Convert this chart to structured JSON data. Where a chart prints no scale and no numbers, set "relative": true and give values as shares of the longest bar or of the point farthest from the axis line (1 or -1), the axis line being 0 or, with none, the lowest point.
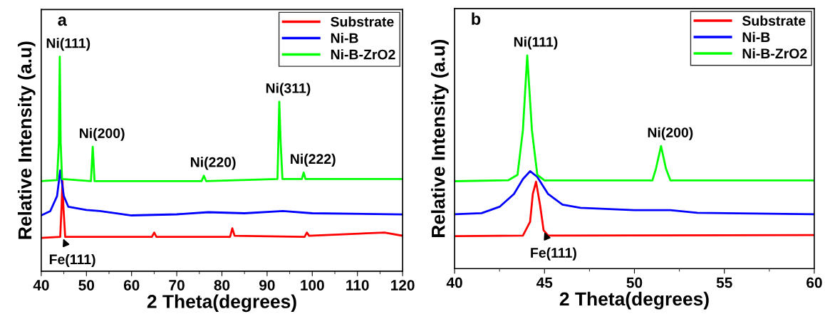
{
  "chart_data": [
    {
      "type": "line",
      "title": "a",
      "xlabel": "2 Theta(degrees)",
      "ylabel": "Relative Intensity (a.u)",
      "relative": true,
      "xlim": [
        40,
        120
      ],
      "xticks": [
        40,
        50,
        60,
        70,
        80,
        90,
        100,
        110,
        120
      ],
      "legend": "top right",
      "grid": false,
      "series": [
        {
          "name": "Substrate",
          "color": "#ff0000",
          "x": [
            40,
            44.2,
            44.5,
            44.7,
            44.9,
            45.3,
            64.5,
            65,
            65.5,
            81.8,
            82.3,
            82.8,
            98.3,
            98.8,
            99.3,
            116,
            120
          ],
          "values": [
            0.155,
            0.16,
            0.3,
            0.42,
            0.3,
            0.16,
            0.16,
            0.18,
            0.16,
            0.16,
            0.2,
            0.165,
            0.16,
            0.18,
            0.165,
            0.18,
            0.165
          ]
        },
        {
          "name": "Ni-B",
          "color": "#0000ff",
          "x": [
            40,
            42,
            43.5,
            44.2,
            45,
            46,
            50,
            53,
            60,
            70,
            77,
            85,
            93.5,
            100,
            120
          ],
          "values": [
            0.26,
            0.28,
            0.35,
            0.47,
            0.35,
            0.3,
            0.285,
            0.28,
            0.26,
            0.265,
            0.275,
            0.27,
            0.28,
            0.27,
            0.265
          ]
        },
        {
          "name": "Ni-B-ZrO2",
          "color": "#00ff00",
          "x": [
            40,
            43.5,
            43.9,
            44.1,
            44.3,
            44.6,
            51.0,
            51.4,
            51.8,
            75.5,
            76.0,
            76.5,
            92.3,
            92.7,
            93.0,
            93.4,
            97.7,
            98.1,
            98.5,
            120
          ],
          "values": [
            0.42,
            0.425,
            0.6,
            1.0,
            0.6,
            0.43,
            0.42,
            0.58,
            0.42,
            0.42,
            0.445,
            0.42,
            0.43,
            0.79,
            0.6,
            0.43,
            0.43,
            0.46,
            0.43,
            0.43
          ]
        }
      ],
      "annotations": [
        {
          "text": "Ni(111)",
          "x": 44.1,
          "y": 1.0
        },
        {
          "text": "Ni(200)",
          "x": 51.4,
          "y": 0.58
        },
        {
          "text": "Ni(220)",
          "x": 76.0,
          "y": 0.445
        },
        {
          "text": "Ni(311)",
          "x": 92.7,
          "y": 0.79
        },
        {
          "text": "Ni(222)",
          "x": 98.1,
          "y": 0.46
        },
        {
          "text": "Fe(111)",
          "x": 44.7,
          "y": 0.16
        }
      ]
    },
    {
      "type": "line",
      "title": "b",
      "xlabel": "2 Theta(degrees)",
      "ylabel": "Relative Intensity (a.u)",
      "relative": true,
      "xlim": [
        40,
        60
      ],
      "xticks": [
        40,
        45,
        50,
        55,
        60
      ],
      "legend": "top right",
      "grid": false,
      "series": [
        {
          "name": "Substrate",
          "color": "#ff0000",
          "x": [
            40,
            43.8,
            44.2,
            44.35,
            44.53,
            44.75,
            44.95,
            45.2,
            60
          ],
          "values": [
            0.152,
            0.155,
            0.22,
            0.35,
            0.408,
            0.3,
            0.18,
            0.155,
            0.157
          ]
        },
        {
          "name": "Ni-B",
          "color": "#0000ff",
          "x": [
            40,
            41.5,
            42.5,
            43.3,
            43.8,
            44.2,
            44.6,
            45.2,
            46,
            47,
            50,
            52,
            53.5,
            60
          ],
          "values": [
            0.255,
            0.26,
            0.29,
            0.35,
            0.42,
            0.457,
            0.43,
            0.35,
            0.3,
            0.285,
            0.274,
            0.274,
            0.262,
            0.255
          ]
        },
        {
          "name": "Ni-B-ZrO2",
          "color": "#00ff00",
          "x": [
            40,
            43.0,
            43.5,
            43.8,
            44.04,
            44.3,
            44.6,
            45.0,
            51.0,
            51.2,
            51.48,
            51.75,
            52.0,
            60
          ],
          "values": [
            0.41,
            0.415,
            0.44,
            0.65,
            1.0,
            0.65,
            0.44,
            0.414,
            0.414,
            0.47,
            0.575,
            0.47,
            0.414,
            0.414
          ]
        }
      ],
      "annotations": [
        {
          "text": "Ni(111)",
          "x": 44.04,
          "y": 1.0
        },
        {
          "text": "Ni(200)",
          "x": 51.48,
          "y": 0.575
        },
        {
          "text": "Fe(111)",
          "x": 44.95,
          "y": 0.18
        }
      ]
    }
  ]
}
